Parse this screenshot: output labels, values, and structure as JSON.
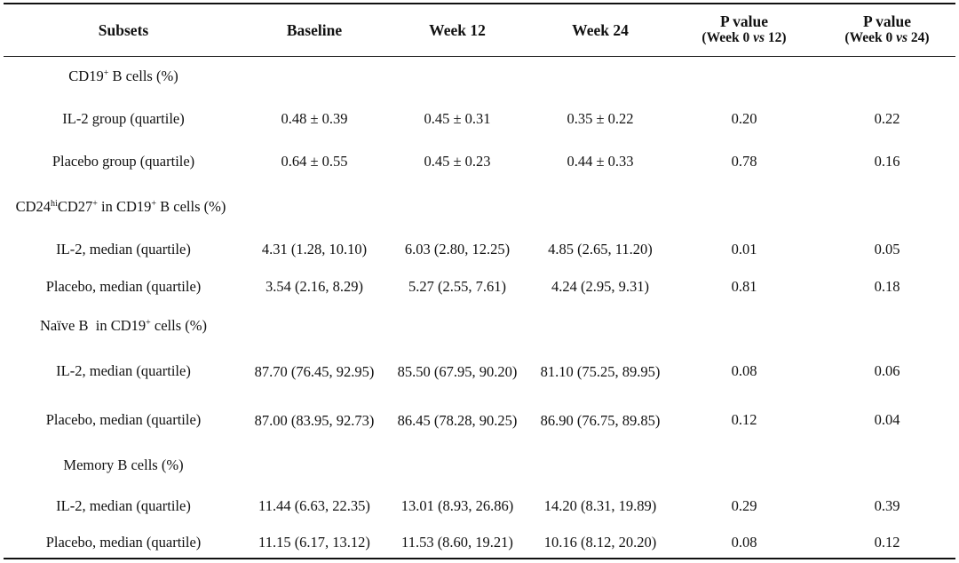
{
  "header": {
    "subsets": "Subsets",
    "baseline": "Baseline",
    "week12": "Week 12",
    "week24": "Week 24",
    "pval12": {
      "title": "P value",
      "pre": "(Week 0 ",
      "vs": "vs",
      "post": " 12)"
    },
    "pval24": {
      "title": "P value",
      "pre": "(Week 0 ",
      "vs": "vs",
      "post": " 24)"
    }
  },
  "sections": {
    "cd19": {
      "pre": "CD19",
      "sup": "+",
      "post": " B cells (%)"
    },
    "cd24": {
      "a": "CD24",
      "sup1": "hi",
      "b": "CD27",
      "sup2": "+",
      "c": " in CD19",
      "sup3": "+",
      "d": " B cells (%)"
    },
    "naive": {
      "pre": "Naïve B  in CD19",
      "sup": "+",
      "post": " cells (%)"
    },
    "memory": {
      "label": "Memory B cells (%)"
    }
  },
  "rows": [
    {
      "label": "IL-2 group (quartile)",
      "baseline": "0.48 ± 0.39",
      "week12": "0.45 ± 0.31",
      "week24": "0.35 ± 0.22",
      "p12": "0.20",
      "p24": "0.22"
    },
    {
      "label": "Placebo group (quartile)",
      "baseline": "0.64 ± 0.55",
      "week12": "0.45 ± 0.23",
      "week24": "0.44 ± 0.33",
      "p12": "0.78",
      "p24": "0.16"
    },
    {
      "label": "IL-2, median (quartile)",
      "baseline": "4.31 (1.28, 10.10)",
      "week12": "6.03 (2.80, 12.25)",
      "week24": "4.85 (2.65, 11.20)",
      "p12": "0.01",
      "p24": "0.05"
    },
    {
      "label": "Placebo, median (quartile)",
      "baseline": "3.54 (2.16, 8.29)",
      "week12": "5.27 (2.55, 7.61)",
      "week24": "4.24 (2.95, 9.31)",
      "p12": "0.81",
      "p24": "0.18"
    },
    {
      "label": "IL-2, median (quartile)",
      "baseline": "87.70 (76.45, 92.95)",
      "week12": "85.50 (67.95, 90.20)",
      "week24": "81.10 (75.25, 89.95)",
      "p12": "0.08",
      "p24": "0.06"
    },
    {
      "label": "Placebo, median (quartile)",
      "baseline": "87.00 (83.95, 92.73)",
      "week12": "86.45 (78.28, 90.25)",
      "week24": "86.90 (76.75, 89.85)",
      "p12": "0.12",
      "p24": "0.04"
    },
    {
      "label": "IL-2, median (quartile)",
      "baseline": "11.44 (6.63, 22.35)",
      "week12": "13.01 (8.93, 26.86)",
      "week24": "14.20 (8.31, 19.89)",
      "p12": "0.29",
      "p24": "0.39"
    },
    {
      "label": "Placebo, median (quartile)",
      "baseline": "11.15 (6.17, 13.12)",
      "week12": "11.53 (8.60, 19.21)",
      "week24": "10.16 (8.12, 20.20)",
      "p12": "0.08",
      "p24": "0.12"
    }
  ]
}
